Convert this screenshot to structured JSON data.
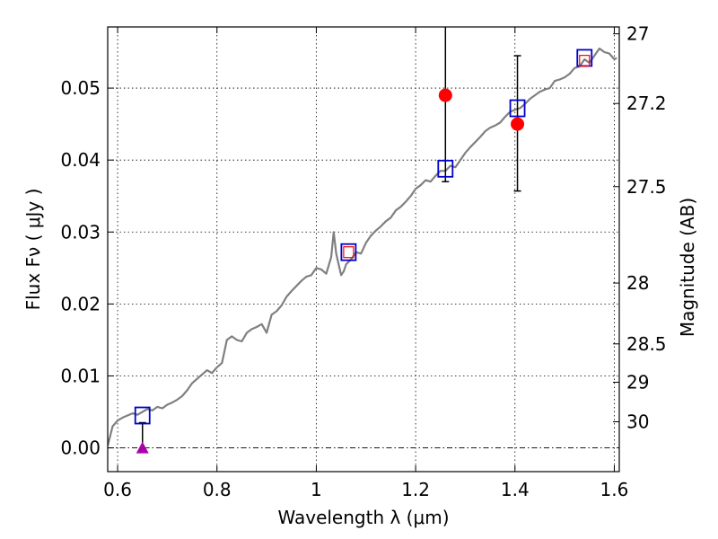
{
  "chart_data": {
    "type": "scatter",
    "xlabel": "Wavelength  λ (μm)",
    "ylabel": "Flux  Fν  ( μJy )",
    "ylabel_right": "Magnitude (AB)",
    "xlim": [
      0.58,
      1.61
    ],
    "ylim": [
      -0.0033,
      0.0585
    ],
    "x_ticks": [
      {
        "value": 0.6,
        "label": "0.6"
      },
      {
        "value": 0.8,
        "label": "0.8"
      },
      {
        "value": 1.0,
        "label": "1"
      },
      {
        "value": 1.2,
        "label": "1.2"
      },
      {
        "value": 1.4,
        "label": "1.4"
      },
      {
        "value": 1.6,
        "label": "1.6"
      }
    ],
    "y_ticks": [
      {
        "value": 0.0,
        "label": "0.00"
      },
      {
        "value": 0.01,
        "label": "0.01"
      },
      {
        "value": 0.02,
        "label": "0.02"
      },
      {
        "value": 0.03,
        "label": "0.03"
      },
      {
        "value": 0.04,
        "label": "0.04"
      },
      {
        "value": 0.05,
        "label": "0.05"
      }
    ],
    "right_ticks": [
      {
        "value": 27,
        "label": "27"
      },
      {
        "value": 27.2,
        "label": "27.2"
      },
      {
        "value": 27.5,
        "label": "27.5"
      },
      {
        "value": 28,
        "label": "28"
      },
      {
        "value": 28.5,
        "label": "28.5"
      },
      {
        "value": 29,
        "label": "29"
      },
      {
        "value": 30,
        "label": "30"
      }
    ],
    "grid": true,
    "series": [
      {
        "kind": "line",
        "color": "#808080",
        "x": [
          0.58,
          0.59,
          0.6,
          0.61,
          0.62,
          0.63,
          0.64,
          0.65,
          0.66,
          0.67,
          0.68,
          0.69,
          0.7,
          0.71,
          0.72,
          0.73,
          0.74,
          0.75,
          0.76,
          0.77,
          0.78,
          0.79,
          0.8,
          0.81,
          0.82,
          0.83,
          0.84,
          0.85,
          0.86,
          0.87,
          0.88,
          0.89,
          0.9,
          0.91,
          0.92,
          0.93,
          0.94,
          0.95,
          0.96,
          0.97,
          0.98,
          0.99,
          1.0,
          1.01,
          1.02,
          1.03,
          1.035,
          1.04,
          1.045,
          1.05,
          1.055,
          1.06,
          1.07,
          1.08,
          1.09,
          1.1,
          1.11,
          1.12,
          1.13,
          1.14,
          1.15,
          1.16,
          1.17,
          1.18,
          1.19,
          1.2,
          1.21,
          1.22,
          1.23,
          1.24,
          1.25,
          1.26,
          1.27,
          1.28,
          1.29,
          1.3,
          1.31,
          1.32,
          1.33,
          1.34,
          1.35,
          1.36,
          1.37,
          1.38,
          1.39,
          1.4,
          1.41,
          1.42,
          1.43,
          1.44,
          1.45,
          1.46,
          1.47,
          1.48,
          1.49,
          1.5,
          1.51,
          1.52,
          1.53,
          1.54,
          1.55,
          1.56,
          1.57,
          1.58,
          1.59,
          1.6,
          1.605
        ],
        "y": [
          0.0003,
          0.003,
          0.0038,
          0.0042,
          0.0045,
          0.0048,
          0.0046,
          0.005,
          0.0054,
          0.0052,
          0.0057,
          0.0055,
          0.006,
          0.0063,
          0.0067,
          0.0072,
          0.008,
          0.009,
          0.0096,
          0.0102,
          0.0108,
          0.0104,
          0.0112,
          0.0118,
          0.015,
          0.0155,
          0.015,
          0.0148,
          0.016,
          0.0165,
          0.0168,
          0.0172,
          0.016,
          0.0185,
          0.019,
          0.0198,
          0.021,
          0.0218,
          0.0225,
          0.0232,
          0.0238,
          0.024,
          0.025,
          0.0248,
          0.0242,
          0.0265,
          0.03,
          0.027,
          0.0255,
          0.024,
          0.0245,
          0.0255,
          0.0262,
          0.0272,
          0.027,
          0.0285,
          0.0295,
          0.0302,
          0.0308,
          0.0315,
          0.032,
          0.033,
          0.0335,
          0.0342,
          0.035,
          0.036,
          0.0365,
          0.0372,
          0.037,
          0.0378,
          0.0385,
          0.0385,
          0.0392,
          0.039,
          0.04,
          0.041,
          0.0418,
          0.0425,
          0.0432,
          0.044,
          0.0445,
          0.0448,
          0.0452,
          0.046,
          0.0467,
          0.047,
          0.0472,
          0.0478,
          0.0485,
          0.049,
          0.0495,
          0.0498,
          0.05,
          0.051,
          0.0512,
          0.0515,
          0.052,
          0.0528,
          0.053,
          0.054,
          0.0535,
          0.0545,
          0.0555,
          0.055,
          0.0548,
          0.054,
          0.0542
        ]
      },
      {
        "kind": "open-square",
        "color": "#0000cc",
        "x": [
          0.65,
          1.065,
          1.26,
          1.405,
          1.54
        ],
        "y": [
          0.0045,
          0.0272,
          0.0388,
          0.0472,
          0.0542
        ]
      },
      {
        "kind": "open-square-small",
        "color": "#ff0000",
        "x": [
          1.065,
          1.54
        ],
        "y": [
          0.0272,
          0.0538
        ]
      },
      {
        "kind": "filled-circle",
        "color": "#ff0000",
        "x": [
          1.26,
          1.405
        ],
        "y": [
          0.049,
          0.045
        ],
        "yerr_low": [
          0.037,
          0.0357
        ],
        "yerr_high": [
          0.059,
          0.0545
        ]
      },
      {
        "kind": "upper-limit",
        "color": "#aa00aa",
        "x": [
          0.65
        ],
        "y": [
          0.0
        ],
        "yerr_high": [
          0.0035
        ]
      }
    ],
    "hline": 0.0
  }
}
